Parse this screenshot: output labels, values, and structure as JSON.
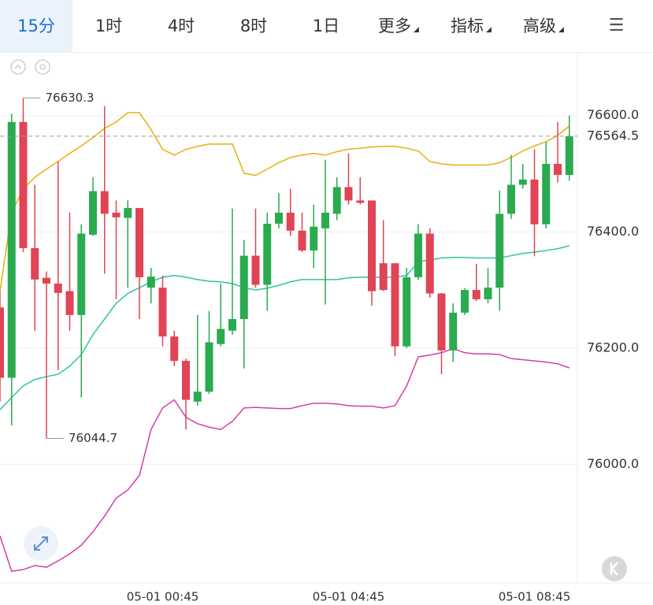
{
  "tabs": [
    "15分",
    "1时",
    "4时",
    "8时",
    "1日",
    "更多",
    "指标",
    "高级"
  ],
  "chart_data": {
    "type": "candlestick",
    "categories": [
      null,
      null,
      null,
      null,
      null,
      null,
      null,
      null,
      null,
      null,
      null,
      null,
      null,
      null,
      "05-01 00:45",
      null,
      null,
      null,
      null,
      null,
      null,
      null,
      null,
      null,
      null,
      null,
      null,
      null,
      null,
      null,
      "05-01 04:45",
      null,
      null,
      null,
      null,
      null,
      null,
      null,
      null,
      null,
      null,
      null,
      null,
      null,
      null,
      null,
      "05-01 08:45",
      null,
      null,
      null
    ],
    "open": [
      76270,
      76149,
      76589,
      76372,
      76321,
      76311,
      76298,
      76257,
      76395,
      76470,
      76433,
      76424,
      76441,
      76304,
      76304,
      76220,
      76178,
      76108,
      76125,
      76207,
      76230,
      76250,
      76359,
      76309,
      76414,
      76433,
      76402,
      76368,
      76406,
      76431,
      76477,
      76454,
      76454,
      76346,
      76346,
      76203,
      76322,
      76397,
      76294,
      76196,
      76261,
      76300,
      76284,
      76304,
      76431,
      76481,
      76490,
      76413,
      76517,
      76498
    ],
    "high": [
      76298,
      76603,
      76630.3,
      76481,
      76332,
      76521,
      76433,
      76413,
      76494,
      76616,
      76454,
      76454,
      76441,
      76338,
      76325,
      76230,
      76182,
      76257,
      76264,
      76311,
      76440,
      76386,
      76440,
      76433,
      76467,
      76474,
      76433,
      76447,
      76524,
      76494,
      76535,
      76494,
      76454,
      76420,
      76346,
      76338,
      76413,
      76406,
      76295,
      76277,
      76303,
      76345,
      76338,
      76471,
      76532,
      76517,
      76542,
      76555,
      76589,
      76600
    ],
    "low": [
      76108,
      76067,
      76365,
      76230,
      76044.7,
      76162,
      76230,
      76115,
      76393,
      76328,
      76284,
      76304,
      76250,
      76277,
      76203,
      76169,
      76060,
      76101,
      76121,
      76203,
      76223,
      76165,
      76304,
      76264,
      76406,
      76393,
      76365,
      76338,
      76275,
      76420,
      76447,
      76447,
      76273,
      76298,
      76186,
      76200,
      76317,
      76287,
      76155,
      76176,
      76257,
      76281,
      76277,
      76264,
      76422,
      76474,
      76358,
      76406,
      76485,
      76488
    ],
    "close": [
      76149,
      76589,
      76372,
      76318,
      76311,
      76295,
      76257,
      76397,
      76470,
      76431,
      76425,
      76441,
      76322,
      76323,
      76220,
      76178,
      76111,
      76125,
      76210,
      76233,
      76250,
      76359,
      76309,
      76414,
      76433,
      76402,
      76368,
      76409,
      76433,
      76477,
      76454,
      76450,
      76298,
      76300,
      76203,
      76322,
      76397,
      76294,
      76196,
      76261,
      76300,
      76284,
      76304,
      76431,
      76481,
      76490,
      76413,
      76517,
      76498,
      76564.5
    ],
    "up_color": "#2aab4f",
    "down_color": "#e04455",
    "series": [
      {
        "color": "#e8b00f",
        "values": [
          76298,
          76433,
          76474,
          76494,
          76508,
          76521,
          76535,
          76548,
          76562,
          76578,
          76589,
          76605,
          76605,
          76576,
          76542,
          76532,
          76542,
          76547,
          76551,
          76551,
          76551,
          76501,
          76497,
          76508,
          76519,
          76528,
          76532,
          76535,
          76532,
          76538,
          76542,
          76544,
          76546,
          76547,
          76547,
          76544,
          76539,
          76521,
          76517,
          76515,
          76515,
          76515,
          76515,
          76519,
          76528,
          76539,
          76548,
          76555,
          76566,
          76582
        ]
      },
      {
        "color": "#2fc3a3",
        "values": [
          76094,
          76115,
          76135,
          76146,
          76151,
          76155,
          76169,
          76189,
          76223,
          76250,
          76277,
          76294,
          76304,
          76314,
          76322,
          76325,
          76322,
          76318,
          76315,
          76314,
          76311,
          76304,
          76300,
          76303,
          76308,
          76314,
          76318,
          76318,
          76318,
          76318,
          76321,
          76322,
          76322,
          76322,
          76322,
          76325,
          76348,
          76352,
          76355,
          76356,
          76356,
          76355,
          76355,
          76355,
          76359,
          76363,
          76365,
          76368,
          76371,
          76376
        ]
      },
      {
        "color": "#d43fa8",
        "values": [
          75877,
          75816,
          75819,
          75826,
          75823,
          75834,
          75846,
          75861,
          75884,
          75911,
          75942,
          75956,
          75981,
          76060,
          76097,
          76111,
          76081,
          76070,
          76064,
          76060,
          76074,
          76097,
          76098,
          76097,
          76096,
          76096,
          76101,
          76105,
          76105,
          76104,
          76101,
          76100,
          76100,
          76097,
          76101,
          76135,
          76185,
          76188,
          76192,
          76199,
          76192,
          76190,
          76190,
          76189,
          76182,
          76180,
          76178,
          76176,
          76173,
          76166
        ]
      }
    ],
    "ylim": [
      75796,
      76704
    ],
    "yticks": [
      {
        "value": 76000,
        "label": "76000.0"
      },
      {
        "value": 76200,
        "label": "76200.0"
      },
      {
        "value": 76400,
        "label": "76400.0"
      },
      {
        "value": 76600,
        "label": "76600.0"
      }
    ],
    "grid": true
  }
}
